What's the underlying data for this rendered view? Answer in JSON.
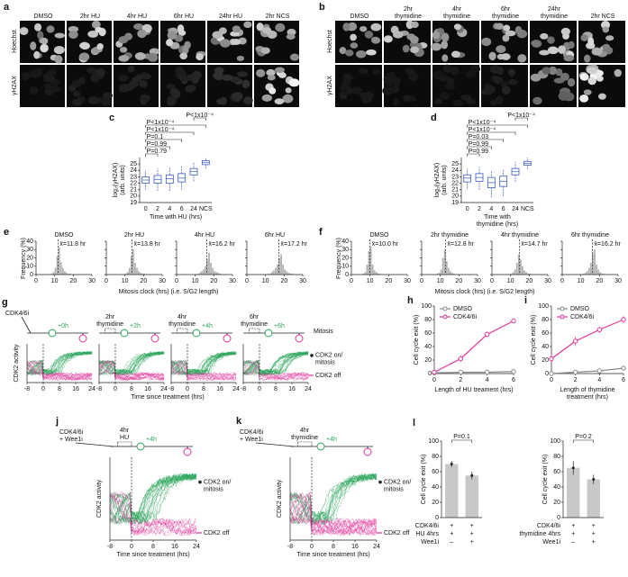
{
  "panels": {
    "a": {
      "label": "a",
      "columns": [
        [
          "DMSO"
        ],
        [
          "2hr HU"
        ],
        [
          "4hr HU"
        ],
        [
          "6hr HU"
        ],
        [
          "24hr HU"
        ],
        [
          "2hr NCS"
        ]
      ],
      "rows": [
        "Hoechst",
        "γH2AX"
      ]
    },
    "b": {
      "label": "b",
      "columns": [
        [
          "DMSO"
        ],
        [
          "2hr",
          "thymidine"
        ],
        [
          "4hr",
          "thymidine"
        ],
        [
          "6hr",
          "thymidine"
        ],
        [
          "24hr",
          "thymidine"
        ],
        [
          "2hr NCS"
        ]
      ],
      "rows": [
        "Hoechst",
        "γH2AX"
      ]
    },
    "e": {
      "label": "e",
      "ylabel": "Frequency (%)",
      "xlabel": "Mitosis clock (hrs) (i.e. S/G2 length)"
    },
    "f": {
      "label": "f",
      "ylabel": "Frequency (%)",
      "xlabel": "Mitosis clock (hrs) (i.e. S/G2 length)"
    },
    "g": {
      "label": "g",
      "drug": [
        "CDK4/6i"
      ],
      "release": [
        "+0h",
        "+2h",
        "+4h",
        "+6h"
      ],
      "treatments": [
        [
          "2hr",
          "thymidine"
        ],
        [
          "4hr",
          "thymidine"
        ],
        [
          "6hr",
          "thymidine"
        ]
      ],
      "mitosis": "Mitosis",
      "ylabel": "CDK2 activity",
      "xlabel": "Time since treatment (hrs)",
      "xlim": [
        -8,
        24
      ],
      "xticks": [
        -8,
        0,
        8,
        16,
        24
      ],
      "ylim": [
        0.2,
        2.4
      ],
      "on_label": [
        "CDK2 on/",
        "mitosis"
      ],
      "off_label": "CDK2 off"
    },
    "j": {
      "label": "j",
      "drug": [
        "CDK4/6i",
        "+ Wee1i"
      ],
      "release": [
        "+4h"
      ],
      "treatments": [
        [
          "4hr",
          "HU"
        ]
      ],
      "ylabel": "CDK2 activity",
      "xlabel": "Time since treatment (hrs)",
      "xlim": [
        -8,
        24
      ],
      "xticks": [
        -8,
        0,
        8,
        16,
        24
      ],
      "ylim": [
        0.2,
        2.4
      ],
      "on_label": [
        "CDK2 on/",
        "mitosis"
      ],
      "off_label": "CDK2 off"
    },
    "k": {
      "label": "k",
      "drug": [
        "CDK4/6i",
        "+ Wee1i"
      ],
      "release": [
        "+4h"
      ],
      "treatments": [
        [
          "4hr",
          "thymidine"
        ]
      ],
      "ylabel": "CDK2 activity",
      "xlabel": "Time since treatment (hrs)",
      "xlim": [
        -8,
        24
      ],
      "xticks": [
        -8,
        0,
        8,
        16,
        24
      ],
      "ylim": [
        0.2,
        2.4
      ],
      "on_label": [
        "CDK2 on/",
        "mitosis"
      ],
      "off_label": "CDK2 off"
    }
  },
  "chart_data": [
    {
      "type": "box",
      "label": "c",
      "categories": [
        "0",
        "2",
        "4",
        "6",
        "24",
        "NCS"
      ],
      "medians": [
        22.5,
        22.6,
        22.7,
        22.8,
        23.8,
        25.2
      ],
      "q1": [
        22,
        22,
        22,
        22.2,
        23.3,
        24.9
      ],
      "q3": [
        23,
        23.2,
        23.3,
        23.5,
        24.3,
        25.5
      ],
      "whisker_low": [
        21,
        20.8,
        20.8,
        21,
        22.3,
        24.3
      ],
      "whisker_high": [
        24,
        24.3,
        24.4,
        24.6,
        25.3,
        26
      ],
      "color": "#3a5bbf",
      "ylim": [
        19,
        26
      ],
      "yticks": [
        19,
        20,
        21,
        22,
        23,
        24,
        25
      ],
      "ylabel": [
        "log₂(γH2AX)",
        "(arb. units)"
      ],
      "xlabel": [
        "Time with HU (hrs)"
      ],
      "p_values": [
        "P=0.79",
        "P=0.99",
        "P=0.1",
        "P<1x10⁻⁴",
        "P<1x10⁻⁴",
        "P<1x10⁻⁴"
      ]
    },
    {
      "type": "box",
      "label": "d",
      "categories": [
        "0",
        "2",
        "4",
        "6",
        "24",
        "NCS"
      ],
      "medians": [
        22.8,
        22.9,
        22.1,
        22.3,
        23.8,
        25.1
      ],
      "q1": [
        22.2,
        22.3,
        21.3,
        21.5,
        23.3,
        24.8
      ],
      "q3": [
        23.3,
        23.5,
        22.9,
        23.1,
        24.3,
        25.4
      ],
      "whisker_low": [
        21.2,
        21,
        19.8,
        20,
        22.2,
        24.2
      ],
      "whisker_high": [
        24.3,
        24.5,
        24,
        24.2,
        25.3,
        26
      ],
      "color": "#3a5bbf",
      "ylim": [
        19,
        26
      ],
      "yticks": [
        19,
        20,
        21,
        22,
        23,
        24,
        25
      ],
      "ylabel": [
        "log₂(γH2AX)",
        "(arb. units)"
      ],
      "xlabel": [
        "Time with",
        "thymidine (hrs)"
      ],
      "p_values": [
        "P=0.99",
        "P=0.99",
        "P=0.03",
        "P<1x10⁻⁴",
        "P<1x10⁻⁴",
        "P<1x10⁻⁴"
      ]
    },
    {
      "type": "histogram",
      "title": "DMSO",
      "mean": 11.8,
      "mean_label": "x̄=11.8 hr",
      "bins": [
        6,
        7,
        8,
        9,
        10,
        11,
        12,
        13,
        14,
        15,
        16,
        17,
        18,
        19,
        20,
        21,
        22,
        23,
        24,
        25,
        26
      ],
      "counts": [
        0,
        0,
        1,
        3,
        8,
        22,
        33,
        15,
        8,
        4,
        2,
        1,
        1,
        0,
        0,
        0,
        0,
        0,
        0,
        0
      ],
      "color": "#b0b0b0",
      "xlim": [
        0,
        30
      ],
      "ylim": [
        0,
        40
      ],
      "xticks": [
        0,
        10,
        20,
        30
      ],
      "yticks": [
        0,
        10,
        20,
        30,
        40
      ]
    },
    {
      "type": "histogram",
      "title": "2hr HU",
      "mean": 13.8,
      "mean_label": "x̄=13.8 hr",
      "bins": [
        6,
        7,
        8,
        9,
        10,
        11,
        12,
        13,
        14,
        15,
        16,
        17,
        18,
        19,
        20,
        21,
        22,
        23,
        24,
        25,
        26
      ],
      "counts": [
        0,
        0,
        0,
        0,
        1,
        3,
        8,
        22,
        30,
        14,
        8,
        4,
        2,
        1,
        1,
        0,
        0,
        0,
        0,
        0
      ],
      "color": "#b0b0b0",
      "xlim": [
        0,
        30
      ],
      "ylim": [
        0,
        40
      ],
      "xticks": [
        0,
        10,
        20,
        30
      ],
      "yticks": [
        0,
        10,
        20,
        30,
        40
      ]
    },
    {
      "type": "histogram",
      "title": "4hr HU",
      "mean": 16.2,
      "mean_label": "x̄=16.2 hr",
      "bins": [
        6,
        7,
        8,
        9,
        10,
        11,
        12,
        13,
        14,
        15,
        16,
        17,
        18,
        19,
        20,
        21,
        22,
        23,
        24,
        25,
        26
      ],
      "counts": [
        0,
        0,
        0,
        0,
        0,
        1,
        2,
        4,
        6,
        10,
        18,
        26,
        14,
        8,
        4,
        3,
        2,
        1,
        0,
        0
      ],
      "color": "#b0b0b0",
      "xlim": [
        0,
        30
      ],
      "ylim": [
        0,
        40
      ],
      "xticks": [
        0,
        10,
        20,
        30
      ],
      "yticks": [
        0,
        10,
        20,
        30,
        40
      ]
    },
    {
      "type": "histogram",
      "title": "6hr HU",
      "mean": 17.2,
      "mean_label": "x̄=17.2 hr",
      "bins": [
        6,
        7,
        8,
        9,
        10,
        11,
        12,
        13,
        14,
        15,
        16,
        17,
        18,
        19,
        20,
        21,
        22,
        23,
        24,
        25,
        26
      ],
      "counts": [
        0,
        0,
        0,
        0,
        0,
        1,
        1,
        3,
        5,
        8,
        12,
        20,
        24,
        12,
        6,
        4,
        2,
        1,
        1,
        0
      ],
      "color": "#b0b0b0",
      "xlim": [
        0,
        30
      ],
      "ylim": [
        0,
        40
      ],
      "xticks": [
        0,
        10,
        20,
        30
      ],
      "yticks": [
        0,
        10,
        20,
        30,
        40
      ]
    },
    {
      "type": "histogram",
      "title": "DMSO",
      "mean": 10.0,
      "mean_label": "x̄=10.0 hr",
      "bins": [
        6,
        7,
        8,
        9,
        10,
        11,
        12,
        13,
        14,
        15,
        16,
        17,
        18,
        19,
        20,
        21,
        22,
        23,
        24,
        25,
        26
      ],
      "counts": [
        1,
        3,
        12,
        28,
        34,
        12,
        5,
        3,
        1,
        1,
        0,
        0,
        0,
        0,
        0,
        0,
        0,
        0,
        0,
        0
      ],
      "color": "#b0b0b0",
      "xlim": [
        0,
        30
      ],
      "ylim": [
        0,
        40
      ],
      "xticks": [
        0,
        10,
        20,
        30
      ],
      "yticks": [
        0,
        10,
        20,
        30,
        40
      ]
    },
    {
      "type": "histogram",
      "title": "2hr thymidine",
      "mean": 12.8,
      "mean_label": "x̄=12.8 hr",
      "bins": [
        6,
        7,
        8,
        9,
        10,
        11,
        12,
        13,
        14,
        15,
        16,
        17,
        18,
        19,
        20,
        21,
        22,
        23,
        24,
        25,
        26
      ],
      "counts": [
        0,
        0,
        1,
        2,
        6,
        20,
        30,
        16,
        8,
        4,
        2,
        1,
        0,
        0,
        0,
        0,
        0,
        0,
        0,
        0
      ],
      "color": "#b0b0b0",
      "xlim": [
        0,
        30
      ],
      "ylim": [
        0,
        40
      ],
      "xticks": [
        0,
        10,
        20,
        30
      ],
      "yticks": [
        0,
        10,
        20,
        30,
        40
      ]
    },
    {
      "type": "histogram",
      "title": "4hr thymidine",
      "mean": 14.7,
      "mean_label": "x̄=14.7 hr",
      "bins": [
        6,
        7,
        8,
        9,
        10,
        11,
        12,
        13,
        14,
        15,
        16,
        17,
        18,
        19,
        20,
        21,
        22,
        23,
        24,
        25,
        26
      ],
      "counts": [
        0,
        0,
        0,
        0,
        1,
        3,
        6,
        14,
        24,
        18,
        10,
        5,
        3,
        1,
        1,
        0,
        0,
        0,
        0,
        0
      ],
      "color": "#b0b0b0",
      "xlim": [
        0,
        30
      ],
      "ylim": [
        0,
        40
      ],
      "xticks": [
        0,
        10,
        20,
        30
      ],
      "yticks": [
        0,
        10,
        20,
        30,
        40
      ]
    },
    {
      "type": "histogram",
      "title": "6hr thymidine",
      "mean": 16.2,
      "mean_label": "x̄=16.2 hr",
      "bins": [
        6,
        7,
        8,
        9,
        10,
        11,
        12,
        13,
        14,
        15,
        16,
        17,
        18,
        19,
        20,
        21,
        22,
        23,
        24,
        25,
        26
      ],
      "counts": [
        0,
        0,
        0,
        0,
        0,
        1,
        2,
        4,
        8,
        14,
        26,
        30,
        12,
        6,
        3,
        1,
        1,
        0,
        0,
        0
      ],
      "color": "#b0b0b0",
      "xlim": [
        0,
        30
      ],
      "ylim": [
        0,
        40
      ],
      "xticks": [
        0,
        10,
        20,
        30
      ],
      "yticks": [
        0,
        10,
        20,
        30,
        40
      ]
    },
    {
      "type": "line",
      "label": "h",
      "x": [
        0,
        2,
        4,
        6
      ],
      "series": [
        {
          "name": "DMSO",
          "color": "#888888",
          "values": [
            1,
            2,
            2,
            3
          ],
          "errors": [
            1,
            1,
            1,
            1
          ]
        },
        {
          "name": "CDK4/6i",
          "color": "#e0339a",
          "values": [
            2,
            22,
            58,
            78
          ],
          "errors": [
            2,
            5,
            4,
            3
          ]
        }
      ],
      "xlim": [
        0,
        6
      ],
      "ylim": [
        0,
        100
      ],
      "xticks": [
        0,
        2,
        4,
        6
      ],
      "yticks": [
        0,
        20,
        40,
        60,
        80,
        100
      ],
      "xlabel": [
        "Length of HU treament (hrs)"
      ],
      "ylabel": "Cell cycle exit (%)"
    },
    {
      "type": "line",
      "label": "i",
      "x": [
        0,
        2,
        4,
        6
      ],
      "series": [
        {
          "name": "DMSO",
          "color": "#888888",
          "values": [
            0,
            2,
            4,
            8
          ],
          "errors": [
            1,
            1,
            2,
            2
          ]
        },
        {
          "name": "CDK4/6i",
          "color": "#e0339a",
          "values": [
            22,
            48,
            65,
            80
          ],
          "errors": [
            6,
            7,
            5,
            5
          ]
        }
      ],
      "xlim": [
        0,
        6
      ],
      "ylim": [
        0,
        100
      ],
      "xticks": [
        0,
        2,
        4,
        6
      ],
      "yticks": [
        0,
        20,
        40,
        60,
        80,
        100
      ],
      "xlabel": [
        "Length of thymidine",
        "treatment (hrs)"
      ],
      "ylabel": "Cell cycle exit (%)"
    },
    {
      "type": "bar",
      "label": "l",
      "values": [
        70,
        55
      ],
      "errors": [
        4,
        5
      ],
      "color": "#c8c8c8",
      "ylim": [
        0,
        100
      ],
      "yticks": [
        0,
        20,
        40,
        60,
        80,
        100
      ],
      "ylabel": "Cell cycle exit (%)",
      "p_value": "P=0.1",
      "conditions": [
        {
          "name": "CDK4/6i",
          "signs": [
            "+",
            "+"
          ]
        },
        {
          "name": "HU 4hrs",
          "signs": [
            "+",
            "+"
          ]
        },
        {
          "name": "Wee1i",
          "signs": [
            "–",
            "+"
          ]
        }
      ]
    },
    {
      "type": "bar",
      "values": [
        65,
        50
      ],
      "errors": [
        9,
        6
      ],
      "color": "#c8c8c8",
      "ylim": [
        0,
        100
      ],
      "yticks": [
        0,
        20,
        40,
        60,
        80,
        100
      ],
      "ylabel": "Cell cycle exit (%)",
      "p_value": "P=0.2",
      "conditions": [
        {
          "name": "CDK4/6i",
          "signs": [
            "+",
            "+"
          ]
        },
        {
          "name": "thymidine 4hrs",
          "signs": [
            "+",
            "+"
          ]
        },
        {
          "name": "Wee1i",
          "signs": [
            "–",
            "+"
          ]
        }
      ]
    }
  ]
}
